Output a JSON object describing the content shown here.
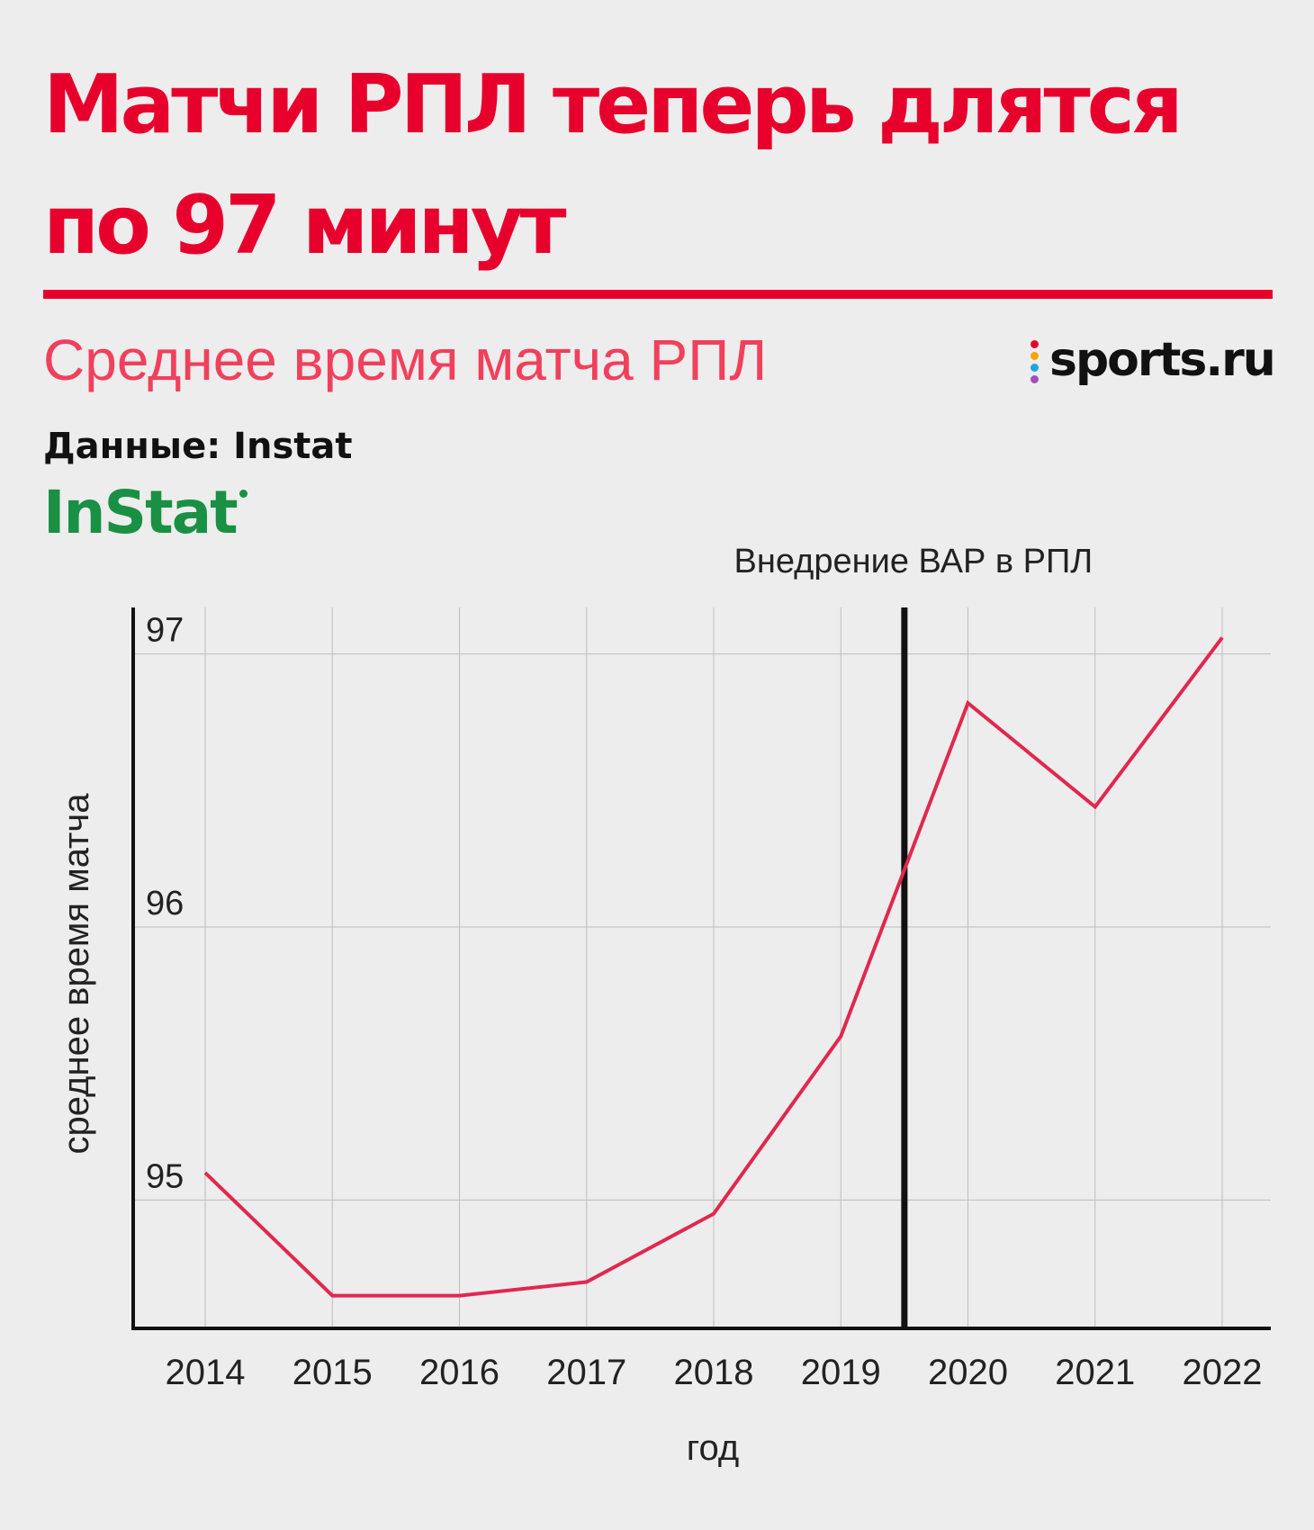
{
  "header": {
    "title_line1": "Матчи РПЛ теперь длятся",
    "title_line2": "по 97 минут",
    "subtitle": "Среднее время матча РПЛ",
    "source": "Данные: Instat"
  },
  "brand": {
    "name": "sports.ru",
    "dot_colors": [
      "#e8002d",
      "#f5a500",
      "#18a8e0",
      "#a34ec1"
    ]
  },
  "source_logo": {
    "text": "InStat"
  },
  "colors": {
    "accent": "#e8002d",
    "line": "#e0284f",
    "instat_green": "#1a9044",
    "background": "#ededed"
  },
  "chart_data": {
    "type": "line",
    "x": [
      "2014",
      "2015",
      "2016",
      "2017",
      "2018",
      "2019",
      "2020",
      "2021",
      "2022"
    ],
    "series": [
      {
        "values": [
          95.1,
          94.65,
          94.65,
          94.7,
          94.95,
          95.6,
          96.82,
          96.44,
          97.06
        ]
      }
    ],
    "y_ticks": [
      "95",
      "96",
      "97"
    ],
    "ylim": [
      94.53,
      97.17
    ],
    "xlabel": "год",
    "ylabel": "среднее время матча",
    "grid": true,
    "annotations": [
      {
        "text": "Внедрение ВАР в РПЛ",
        "type": "vertical-line",
        "x_between": [
          "2019",
          "2020"
        ]
      }
    ]
  }
}
